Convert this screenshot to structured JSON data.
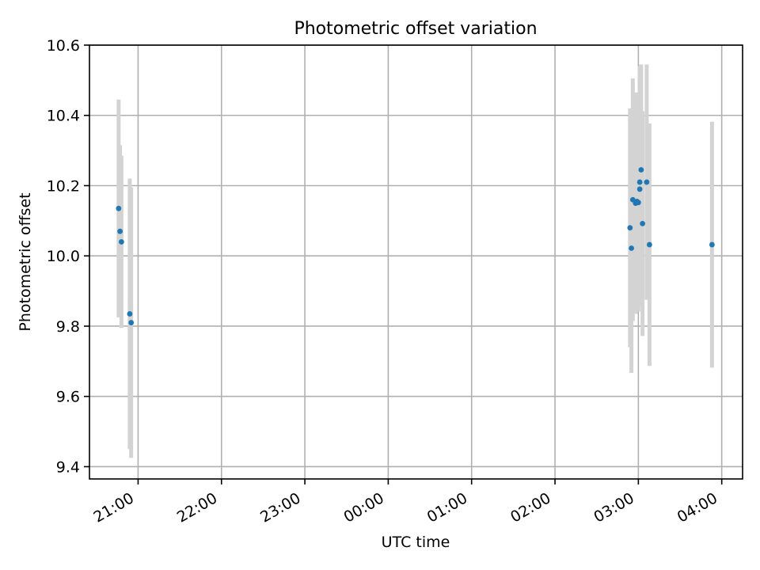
{
  "chart_data": {
    "type": "scatter",
    "title": "Photometric offset variation",
    "xlabel": "UTC time",
    "ylabel": "Photometric offset",
    "xlim": [
      "2000-01-01T20:25",
      "2000-01-02T04:15"
    ],
    "ylim": [
      9.365,
      10.6
    ],
    "x_ticks": [
      {
        "t": "2000-01-01T21:00",
        "label": "21:00"
      },
      {
        "t": "2000-01-01T22:00",
        "label": "22:00"
      },
      {
        "t": "2000-01-01T23:00",
        "label": "23:00"
      },
      {
        "t": "2000-01-02T00:00",
        "label": "00:00"
      },
      {
        "t": "2000-01-02T01:00",
        "label": "01:00"
      },
      {
        "t": "2000-01-02T02:00",
        "label": "02:00"
      },
      {
        "t": "2000-01-02T03:00",
        "label": "03:00"
      },
      {
        "t": "2000-01-02T04:00",
        "label": "04:00"
      }
    ],
    "y_ticks": [
      {
        "v": 9.4,
        "label": "9.4"
      },
      {
        "v": 9.6,
        "label": "9.6"
      },
      {
        "v": 9.8,
        "label": "9.8"
      },
      {
        "v": 10.0,
        "label": "10.0"
      },
      {
        "v": 10.2,
        "label": "10.2"
      },
      {
        "v": 10.4,
        "label": "10.4"
      },
      {
        "v": 10.6,
        "label": "10.6"
      }
    ],
    "grid": true,
    "marker_color": "#1f77b4",
    "errorbar_color": "#d3d3d3",
    "points": [
      {
        "t": "2000-01-01T20:46",
        "y": 10.135,
        "err": 0.31
      },
      {
        "t": "2000-01-01T20:47",
        "y": 10.07,
        "err": 0.245
      },
      {
        "t": "2000-01-01T20:48",
        "y": 10.04,
        "err": 0.245
      },
      {
        "t": "2000-01-01T20:54",
        "y": 9.835,
        "err": 0.385
      },
      {
        "t": "2000-01-01T20:55",
        "y": 9.81,
        "err": 0.385
      },
      {
        "t": "2000-01-02T02:54",
        "y": 10.08,
        "err": 0.34
      },
      {
        "t": "2000-01-02T02:55",
        "y": 10.022,
        "err": 0.355
      },
      {
        "t": "2000-01-02T02:56",
        "y": 10.16,
        "err": 0.345
      },
      {
        "t": "2000-01-02T02:58",
        "y": 10.15,
        "err": 0.315
      },
      {
        "t": "2000-01-02T02:59",
        "y": 10.155,
        "err": 0.31
      },
      {
        "t": "2000-01-02T03:00",
        "y": 10.152,
        "err": 0.31
      },
      {
        "t": "2000-01-02T03:01",
        "y": 10.21,
        "err": 0.33
      },
      {
        "t": "2000-01-02T03:01",
        "y": 10.19,
        "err": 0.33
      },
      {
        "t": "2000-01-02T03:02",
        "y": 10.245,
        "err": 0.3
      },
      {
        "t": "2000-01-02T03:03",
        "y": 10.092,
        "err": 0.32
      },
      {
        "t": "2000-01-02T03:06",
        "y": 10.21,
        "err": 0.335
      },
      {
        "t": "2000-01-02T03:08",
        "y": 10.032,
        "err": 0.345
      },
      {
        "t": "2000-01-02T03:53",
        "y": 10.032,
        "err": 0.35
      }
    ]
  }
}
